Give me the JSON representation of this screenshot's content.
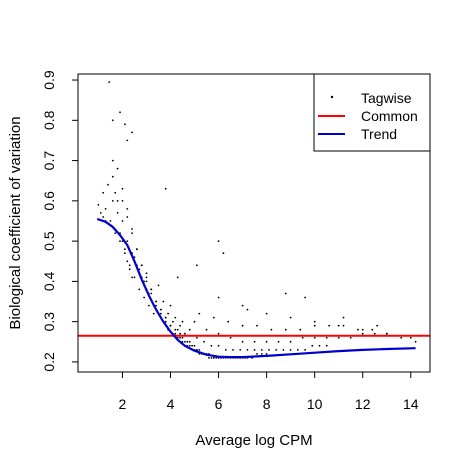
{
  "chart_data": {
    "type": "scatter",
    "title": "",
    "xlabel": "Average log CPM",
    "ylabel": "Biological coefficient of variation",
    "xlim": [
      0.15,
      14.8
    ],
    "ylim": [
      0.175,
      0.915
    ],
    "x_ticks": [
      2,
      4,
      6,
      8,
      10,
      12,
      14
    ],
    "x_tick_labels": [
      "2",
      "4",
      "6",
      "8",
      "10",
      "12",
      "14"
    ],
    "y_ticks": [
      0.2,
      0.3,
      0.4,
      0.5,
      0.6,
      0.7,
      0.8,
      0.9
    ],
    "y_tick_labels": [
      "0.2",
      "0.3",
      "0.4",
      "0.5",
      "0.6",
      "0.7",
      "0.8",
      "0.9"
    ],
    "grid": false,
    "legend": {
      "position": "top-right",
      "entries": [
        {
          "label": "Tagwise",
          "kind": "point",
          "color": "#000000"
        },
        {
          "label": "Common",
          "kind": "line",
          "color": "#ff0000"
        },
        {
          "label": "Trend",
          "kind": "line",
          "color": "#0000cc"
        }
      ]
    },
    "series": [
      {
        "name": "Tagwise",
        "kind": "points",
        "color": "#000000",
        "x": [
          1.45,
          1.0,
          1.1,
          1.2,
          1.3,
          1.5,
          1.6,
          1.7,
          1.8,
          1.9,
          2.0,
          2.1,
          2.2,
          2.3,
          2.4,
          1.2,
          1.4,
          1.6,
          1.8,
          2.0,
          2.2,
          2.4,
          2.6,
          2.8,
          3.0,
          1.3,
          1.5,
          1.7,
          1.9,
          2.1,
          2.3,
          2.5,
          2.7,
          2.9,
          3.1,
          3.3,
          1.6,
          1.8,
          2.0,
          2.2,
          2.4,
          2.6,
          2.8,
          3.0,
          3.2,
          3.4,
          3.6,
          3.8,
          2.0,
          2.2,
          2.4,
          2.6,
          2.8,
          3.0,
          3.2,
          3.4,
          3.6,
          3.8,
          4.0,
          4.2,
          4.4,
          2.5,
          2.7,
          2.9,
          3.1,
          3.3,
          3.5,
          3.7,
          3.9,
          4.1,
          4.3,
          4.5,
          4.7,
          4.9,
          5.1,
          3.0,
          3.2,
          3.4,
          3.6,
          3.8,
          4.0,
          4.2,
          4.4,
          4.6,
          4.8,
          5.0,
          5.2,
          5.4,
          5.6,
          5.8,
          6.0,
          3.5,
          3.7,
          3.9,
          4.1,
          4.3,
          4.5,
          4.7,
          4.9,
          5.1,
          5.3,
          5.5,
          5.7,
          5.9,
          6.1,
          6.3,
          6.5,
          6.7,
          6.9,
          7.1,
          4.0,
          4.2,
          4.4,
          4.6,
          4.8,
          5.0,
          5.2,
          5.4,
          5.6,
          5.8,
          6.0,
          6.2,
          6.4,
          6.6,
          6.8,
          7.0,
          7.2,
          7.4,
          7.6,
          7.8,
          8.0,
          4.5,
          4.8,
          5.1,
          5.4,
          5.7,
          6.0,
          6.3,
          6.6,
          6.9,
          7.2,
          7.5,
          7.8,
          8.1,
          8.4,
          8.7,
          9.0,
          9.3,
          9.6,
          9.9,
          10.2,
          10.5,
          5.0,
          5.5,
          6.0,
          6.5,
          7.0,
          7.5,
          8.0,
          8.5,
          9.0,
          9.5,
          10.0,
          10.5,
          11.0,
          11.5,
          12.0,
          12.5,
          13.0,
          5.2,
          5.8,
          6.4,
          7.0,
          7.6,
          8.2,
          8.8,
          9.4,
          10.0,
          10.6,
          11.2,
          11.8,
          12.4,
          13.0,
          13.6,
          14.2,
          6.0,
          7.0,
          8.0,
          9.0,
          10.0,
          11.0,
          12.0,
          13.0,
          14.0,
          1.6,
          1.9,
          2.1,
          2.4,
          2.2,
          6.0,
          6.2,
          5.1,
          8.8,
          9.6,
          11.2,
          3.8,
          7.2,
          12.6,
          4.3
        ],
        "y": [
          0.895,
          0.59,
          0.57,
          0.56,
          0.55,
          0.54,
          0.6,
          0.62,
          0.57,
          0.52,
          0.5,
          0.48,
          0.45,
          0.43,
          0.41,
          0.62,
          0.64,
          0.66,
          0.6,
          0.55,
          0.5,
          0.47,
          0.44,
          0.41,
          0.38,
          0.58,
          0.55,
          0.52,
          0.5,
          0.47,
          0.44,
          0.41,
          0.38,
          0.36,
          0.34,
          0.32,
          0.7,
          0.68,
          0.63,
          0.58,
          0.53,
          0.48,
          0.44,
          0.41,
          0.38,
          0.35,
          0.33,
          0.31,
          0.6,
          0.56,
          0.52,
          0.48,
          0.44,
          0.4,
          0.37,
          0.34,
          0.32,
          0.3,
          0.29,
          0.28,
          0.27,
          0.46,
          0.43,
          0.4,
          0.37,
          0.34,
          0.32,
          0.3,
          0.28,
          0.27,
          0.26,
          0.25,
          0.24,
          0.23,
          0.23,
          0.42,
          0.38,
          0.35,
          0.33,
          0.31,
          0.29,
          0.27,
          0.26,
          0.25,
          0.24,
          0.23,
          0.22,
          0.22,
          0.21,
          0.21,
          0.21,
          0.39,
          0.35,
          0.32,
          0.3,
          0.28,
          0.26,
          0.25,
          0.24,
          0.23,
          0.22,
          0.22,
          0.21,
          0.21,
          0.21,
          0.21,
          0.21,
          0.21,
          0.21,
          0.21,
          0.34,
          0.31,
          0.29,
          0.27,
          0.25,
          0.24,
          0.23,
          0.22,
          0.22,
          0.21,
          0.21,
          0.21,
          0.21,
          0.21,
          0.21,
          0.21,
          0.21,
          0.21,
          0.22,
          0.22,
          0.22,
          0.3,
          0.28,
          0.26,
          0.25,
          0.24,
          0.24,
          0.23,
          0.23,
          0.23,
          0.23,
          0.23,
          0.23,
          0.23,
          0.23,
          0.23,
          0.23,
          0.23,
          0.23,
          0.24,
          0.24,
          0.24,
          0.3,
          0.28,
          0.27,
          0.26,
          0.25,
          0.25,
          0.25,
          0.25,
          0.25,
          0.26,
          0.26,
          0.26,
          0.26,
          0.26,
          0.27,
          0.27,
          0.27,
          0.32,
          0.31,
          0.3,
          0.29,
          0.29,
          0.28,
          0.28,
          0.28,
          0.29,
          0.29,
          0.29,
          0.28,
          0.28,
          0.27,
          0.26,
          0.25,
          0.36,
          0.34,
          0.32,
          0.31,
          0.3,
          0.29,
          0.28,
          0.27,
          0.26,
          0.8,
          0.82,
          0.79,
          0.77,
          0.75,
          0.5,
          0.47,
          0.44,
          0.37,
          0.36,
          0.31,
          0.63,
          0.33,
          0.29,
          0.41
        ]
      },
      {
        "name": "Common",
        "kind": "hline",
        "color": "#ff0000",
        "y": 0.265
      },
      {
        "name": "Trend",
        "kind": "line",
        "color": "#0000cc",
        "x": [
          0.95,
          1.3,
          1.6,
          1.9,
          2.2,
          2.5,
          2.8,
          3.1,
          3.4,
          3.7,
          4.0,
          4.3,
          4.6,
          5.0,
          5.5,
          6.0,
          6.5,
          7.0,
          8.0,
          9.0,
          10.0,
          11.0,
          12.0,
          13.0,
          14.2
        ],
        "y": [
          0.555,
          0.548,
          0.535,
          0.515,
          0.49,
          0.45,
          0.405,
          0.365,
          0.33,
          0.3,
          0.275,
          0.255,
          0.24,
          0.228,
          0.218,
          0.213,
          0.212,
          0.212,
          0.215,
          0.219,
          0.223,
          0.227,
          0.23,
          0.232,
          0.234
        ]
      }
    ]
  }
}
